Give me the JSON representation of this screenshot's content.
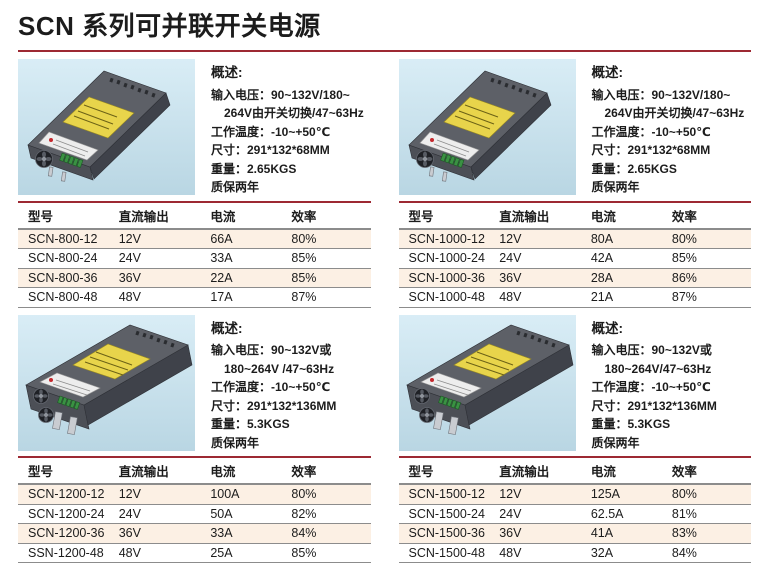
{
  "colors": {
    "accent": "#9d2933",
    "row_shade": "#fcf0e4",
    "table_line": "#8c8c8c"
  },
  "page_title": "SCN 系列可并联开关电源",
  "sections": [
    {
      "model_series": "SCN-800",
      "image_variant": "single-fan",
      "overview_title": "概述:",
      "specs": [
        {
          "text": "输入电压：90~132V/180~",
          "indent": false
        },
        {
          "text": "264V由开关切换/47~63Hz",
          "indent": true
        },
        {
          "text": "工作温度：-10~+50℃",
          "indent": false
        },
        {
          "text": "尺寸：291*132*68MM",
          "indent": false
        },
        {
          "text": "重量：2.65KGS",
          "indent": false
        },
        {
          "text": "质保两年",
          "indent": false
        }
      ],
      "table": {
        "headers": [
          "型号",
          "直流输出",
          "电流",
          "效率"
        ],
        "rows": [
          [
            "SCN-800-12",
            "12V",
            "66A",
            "80%"
          ],
          [
            "SCN-800-24",
            "24V",
            "33A",
            "85%"
          ],
          [
            "SCN-800-36",
            "36V",
            "22A",
            "85%"
          ],
          [
            "SCN-800-48",
            "48V",
            "17A",
            "87%"
          ]
        ]
      }
    },
    {
      "model_series": "SCN-1000",
      "image_variant": "single-fan",
      "overview_title": "概述:",
      "specs": [
        {
          "text": "输入电压：90~132V/180~",
          "indent": false
        },
        {
          "text": "264V由开关切换/47~63Hz",
          "indent": true
        },
        {
          "text": "工作温度：-10~+50℃",
          "indent": false
        },
        {
          "text": "尺寸：291*132*68MM",
          "indent": false
        },
        {
          "text": "重量：2.65KGS",
          "indent": false
        },
        {
          "text": "质保两年",
          "indent": false
        }
      ],
      "table": {
        "headers": [
          "型号",
          "直流输出",
          "电流",
          "效率"
        ],
        "rows": [
          [
            "SCN-1000-12",
            "12V",
            "80A",
            "80%"
          ],
          [
            "SCN-1000-24",
            "24V",
            "42A",
            "85%"
          ],
          [
            "SCN-1000-36",
            "36V",
            "28A",
            "86%"
          ],
          [
            "SCN-1000-48",
            "48V",
            "21A",
            "87%"
          ]
        ]
      }
    },
    {
      "model_series": "SCN-1200",
      "image_variant": "dual-fan",
      "overview_title": "概述:",
      "specs": [
        {
          "text": "输入电压：90~132V或",
          "indent": false
        },
        {
          "text": "180~264V /47~63Hz",
          "indent": true
        },
        {
          "text": "工作温度：-10~+50℃",
          "indent": false
        },
        {
          "text": "尺寸：291*132*136MM",
          "indent": false
        },
        {
          "text": "重量：5.3KGS",
          "indent": false
        },
        {
          "text": "质保两年",
          "indent": false
        }
      ],
      "table": {
        "headers": [
          "型号",
          "直流输出",
          "电流",
          "效率"
        ],
        "rows": [
          [
            "SCN-1200-12",
            "12V",
            "100A",
            "80%"
          ],
          [
            "SCN-1200-24",
            "24V",
            "50A",
            "82%"
          ],
          [
            "SCN-1200-36",
            "36V",
            "33A",
            "84%"
          ],
          [
            "SSN-1200-48",
            "48V",
            "25A",
            "85%"
          ]
        ]
      }
    },
    {
      "model_series": "SCN-1500",
      "image_variant": "dual-fan",
      "overview_title": "概述:",
      "specs": [
        {
          "text": "输入电压：90~132V或",
          "indent": false
        },
        {
          "text": "180~264V/47~63Hz",
          "indent": true
        },
        {
          "text": "工作温度：-10~+50℃",
          "indent": false
        },
        {
          "text": "尺寸：291*132*136MM",
          "indent": false
        },
        {
          "text": "重量：5.3KGS",
          "indent": false
        },
        {
          "text": "质保两年",
          "indent": false
        }
      ],
      "table": {
        "headers": [
          "型号",
          "直流输出",
          "电流",
          "效率"
        ],
        "rows": [
          [
            "SCN-1500-12",
            "12V",
            "125A",
            "80%"
          ],
          [
            "SCN-1500-24",
            "24V",
            "62.5A",
            "81%"
          ],
          [
            "SCN-1500-36",
            "36V",
            "41A",
            "83%"
          ],
          [
            "SCN-1500-48",
            "48V",
            "32A",
            "84%"
          ]
        ]
      }
    }
  ]
}
